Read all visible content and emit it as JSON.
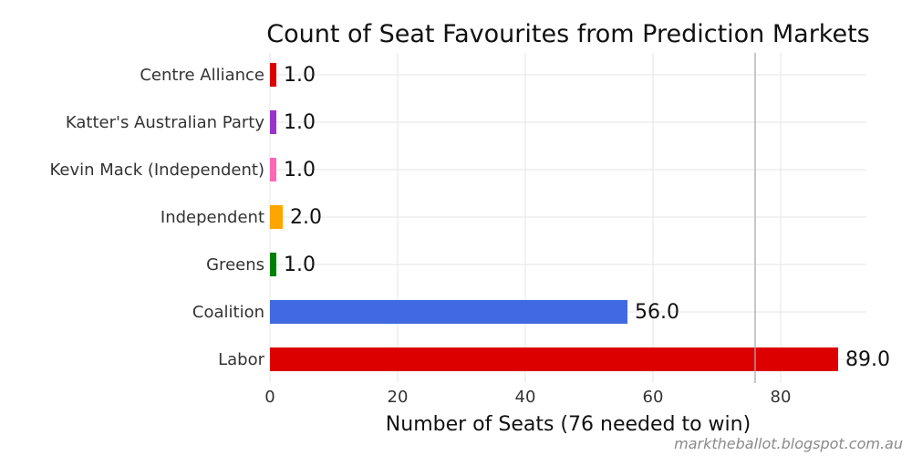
{
  "chart_data": {
    "type": "bar",
    "orientation": "horizontal",
    "title": "Count of Seat Favourites from Prediction Markets",
    "xlabel": "Number of Seats (76 needed to win)",
    "ylabel": "",
    "categories": [
      "Centre Alliance",
      "Katter's Australian Party",
      "Kevin Mack (Independent)",
      "Independent",
      "Greens",
      "Coalition",
      "Labor"
    ],
    "values": [
      1.0,
      1.0,
      1.0,
      2.0,
      1.0,
      56.0,
      89.0
    ],
    "data_labels": [
      "1.0",
      "1.0",
      "1.0",
      "2.0",
      "1.0",
      "56.0",
      "89.0"
    ],
    "colors": [
      "#dd0000",
      "#9933cc",
      "#ff69b4",
      "#ffa500",
      "#008000",
      "#4169e1",
      "#dd0000"
    ],
    "xlim": [
      0,
      94
    ],
    "xticks": [
      0,
      20,
      40,
      60,
      80
    ],
    "xtick_labels": [
      "0",
      "20",
      "40",
      "60",
      "80"
    ],
    "reference_line": 76,
    "reference_line_color": "#aaaaaa",
    "grid": true
  },
  "credit": "marktheballot.blogspot.com.au"
}
